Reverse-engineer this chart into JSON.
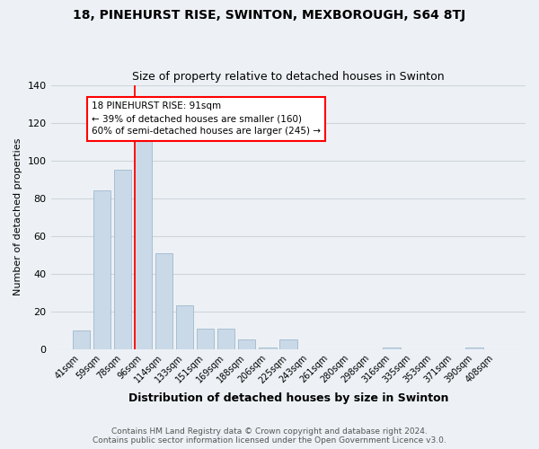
{
  "title": "18, PINEHURST RISE, SWINTON, MEXBOROUGH, S64 8TJ",
  "subtitle": "Size of property relative to detached houses in Swinton",
  "xlabel": "Distribution of detached houses by size in Swinton",
  "ylabel": "Number of detached properties",
  "footer_line1": "Contains HM Land Registry data © Crown copyright and database right 2024.",
  "footer_line2": "Contains public sector information licensed under the Open Government Licence v3.0.",
  "categories": [
    "41sqm",
    "59sqm",
    "78sqm",
    "96sqm",
    "114sqm",
    "133sqm",
    "151sqm",
    "169sqm",
    "188sqm",
    "206sqm",
    "225sqm",
    "243sqm",
    "261sqm",
    "280sqm",
    "298sqm",
    "316sqm",
    "335sqm",
    "353sqm",
    "371sqm",
    "390sqm",
    "408sqm"
  ],
  "values": [
    10,
    84,
    95,
    112,
    51,
    23,
    11,
    11,
    5,
    1,
    5,
    0,
    0,
    0,
    0,
    1,
    0,
    0,
    0,
    1,
    0
  ],
  "bar_color": "#c9d9e8",
  "bar_edge_color": "#a0b8cc",
  "highlight_line_index": 3,
  "annotation_line1": "18 PINEHURST RISE: 91sqm",
  "annotation_line2": "← 39% of detached houses are smaller (160)",
  "annotation_line3": "60% of semi-detached houses are larger (245) →",
  "annotation_box_color": "white",
  "annotation_box_edge_color": "red",
  "highlight_line_color": "red",
  "ylim": [
    0,
    140
  ],
  "yticks": [
    0,
    20,
    40,
    60,
    80,
    100,
    120,
    140
  ],
  "grid_color": "#cdd5dd",
  "background_color": "#edf1f5"
}
